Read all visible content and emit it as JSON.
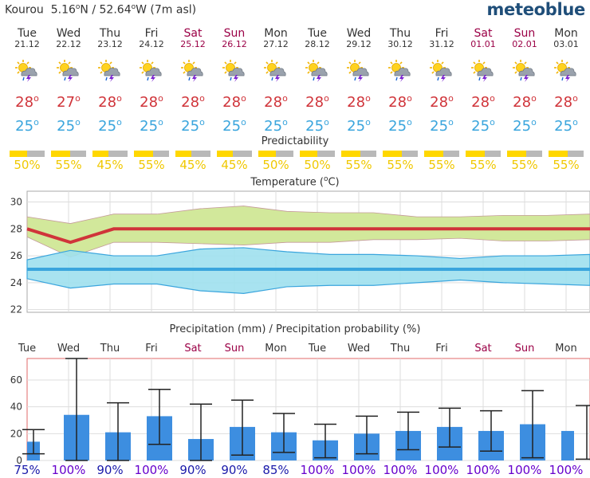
{
  "header": {
    "location": "Kourou",
    "lat": "5.16",
    "lat_dir": "N",
    "lon": "52.64",
    "lon_dir": "W",
    "altitude": "(7m asl)",
    "brand": "meteoblue"
  },
  "days": [
    {
      "day": "Tue",
      "date": "21.12",
      "tmax": "28",
      "tmin": "25",
      "pred": 50,
      "pred_label": "50%",
      "weekend": false
    },
    {
      "day": "Wed",
      "date": "22.12",
      "tmax": "27",
      "tmin": "25",
      "pred": 55,
      "pred_label": "55%",
      "weekend": false
    },
    {
      "day": "Thu",
      "date": "23.12",
      "tmax": "28",
      "tmin": "25",
      "pred": 45,
      "pred_label": "45%",
      "weekend": false
    },
    {
      "day": "Fri",
      "date": "24.12",
      "tmax": "28",
      "tmin": "25",
      "pred": 55,
      "pred_label": "55%",
      "weekend": false
    },
    {
      "day": "Sat",
      "date": "25.12",
      "tmax": "28",
      "tmin": "25",
      "pred": 45,
      "pred_label": "45%",
      "weekend": true
    },
    {
      "day": "Sun",
      "date": "26.12",
      "tmax": "28",
      "tmin": "25",
      "pred": 45,
      "pred_label": "45%",
      "weekend": true
    },
    {
      "day": "Mon",
      "date": "27.12",
      "tmax": "28",
      "tmin": "25",
      "pred": 50,
      "pred_label": "50%",
      "weekend": false
    },
    {
      "day": "Tue",
      "date": "28.12",
      "tmax": "28",
      "tmin": "25",
      "pred": 50,
      "pred_label": "50%",
      "weekend": false
    },
    {
      "day": "Wed",
      "date": "29.12",
      "tmax": "28",
      "tmin": "25",
      "pred": 55,
      "pred_label": "55%",
      "weekend": false
    },
    {
      "day": "Thu",
      "date": "30.12",
      "tmax": "28",
      "tmin": "25",
      "pred": 55,
      "pred_label": "55%",
      "weekend": false
    },
    {
      "day": "Fri",
      "date": "31.12",
      "tmax": "28",
      "tmin": "25",
      "pred": 55,
      "pred_label": "55%",
      "weekend": false
    },
    {
      "day": "Sat",
      "date": "01.01",
      "tmax": "28",
      "tmin": "25",
      "pred": 55,
      "pred_label": "55%",
      "weekend": true
    },
    {
      "day": "Sun",
      "date": "02.01",
      "tmax": "28",
      "tmin": "25",
      "pred": 55,
      "pred_label": "55%",
      "weekend": true
    },
    {
      "day": "Mon",
      "date": "03.01",
      "tmax": "28",
      "tmin": "25",
      "pred": 55,
      "pred_label": "55%",
      "weekend": false
    }
  ],
  "icon_name": "thunderstorm-sun-icon",
  "predictability_title": "Predictability",
  "colors": {
    "max_temp": "#d0343a",
    "min_temp": "#3aa5dd",
    "weekend": "#9b0046",
    "predictability": "#ffd700",
    "precip_bar": "#3d8ee0",
    "prob_normal": "#1a1aaa",
    "prob_high": "#6600cc"
  },
  "chart_data": [
    {
      "type": "line",
      "title": "Temperature (°C)",
      "title_text": "Temperature (",
      "title_unit": "C)",
      "x": [
        "Tue",
        "Wed",
        "Thu",
        "Fri",
        "Sat",
        "Sun",
        "Mon",
        "Tue",
        "Wed",
        "Thu",
        "Fri",
        "Sat",
        "Sun",
        "Mon"
      ],
      "ylim": [
        21.8,
        30.8
      ],
      "yticks": [
        22,
        24,
        26,
        28,
        30
      ],
      "series": [
        {
          "values": [
            28.0,
            27.0,
            28.0,
            28.0,
            28.0,
            28.0,
            28.0,
            28.0,
            28.0,
            28.0,
            28.0,
            28.0,
            28.0,
            28.0
          ]
        },
        {
          "values": [
            25.0,
            25.0,
            25.0,
            25.0,
            25.0,
            25.0,
            25.0,
            25.0,
            25.0,
            25.0,
            25.0,
            25.0,
            25.0,
            25.0
          ]
        }
      ],
      "max_band_upper": [
        28.9,
        28.4,
        29.1,
        29.1,
        29.5,
        29.7,
        29.3,
        29.2,
        29.2,
        28.9,
        28.9,
        29.0,
        29.0,
        29.1
      ],
      "max_band_lower": [
        27.4,
        25.9,
        27.0,
        27.0,
        26.9,
        26.8,
        27.0,
        27.0,
        27.2,
        27.2,
        27.3,
        27.1,
        27.1,
        27.2
      ],
      "min_band_upper": [
        25.7,
        26.4,
        26.0,
        26.0,
        26.5,
        26.6,
        26.3,
        26.1,
        26.1,
        26.0,
        25.8,
        26.0,
        26.0,
        26.1
      ],
      "min_band_lower": [
        24.3,
        23.6,
        23.9,
        23.9,
        23.4,
        23.2,
        23.7,
        23.8,
        23.8,
        24.0,
        24.2,
        24.0,
        23.9,
        23.8
      ],
      "grid": true
    },
    {
      "type": "bar",
      "title": "Precipitation (mm) / Precipitation probability (%)",
      "categories": [
        "Tue",
        "Wed",
        "Thu",
        "Fri",
        "Sat",
        "Sun",
        "Mon",
        "Tue",
        "Wed",
        "Thu",
        "Fri",
        "Sat",
        "Sun",
        "Mon"
      ],
      "values": [
        14,
        34,
        21,
        33,
        16,
        25,
        21,
        15,
        20,
        22,
        25,
        22,
        27,
        22
      ],
      "error_low": [
        5,
        0,
        0,
        12,
        0,
        4,
        6,
        2,
        5,
        8,
        10,
        7,
        2,
        1
      ],
      "error_high": [
        23,
        76,
        43,
        53,
        42,
        45,
        35,
        27,
        33,
        36,
        39,
        37,
        52,
        41
      ],
      "probability": [
        "75%",
        "100%",
        "90%",
        "100%",
        "90%",
        "90%",
        "85%",
        "100%",
        "100%",
        "100%",
        "100%",
        "100%",
        "100%",
        "100%"
      ],
      "ylim": [
        0,
        76
      ],
      "yticks": [
        0,
        20,
        40,
        60
      ],
      "grid": true
    }
  ]
}
